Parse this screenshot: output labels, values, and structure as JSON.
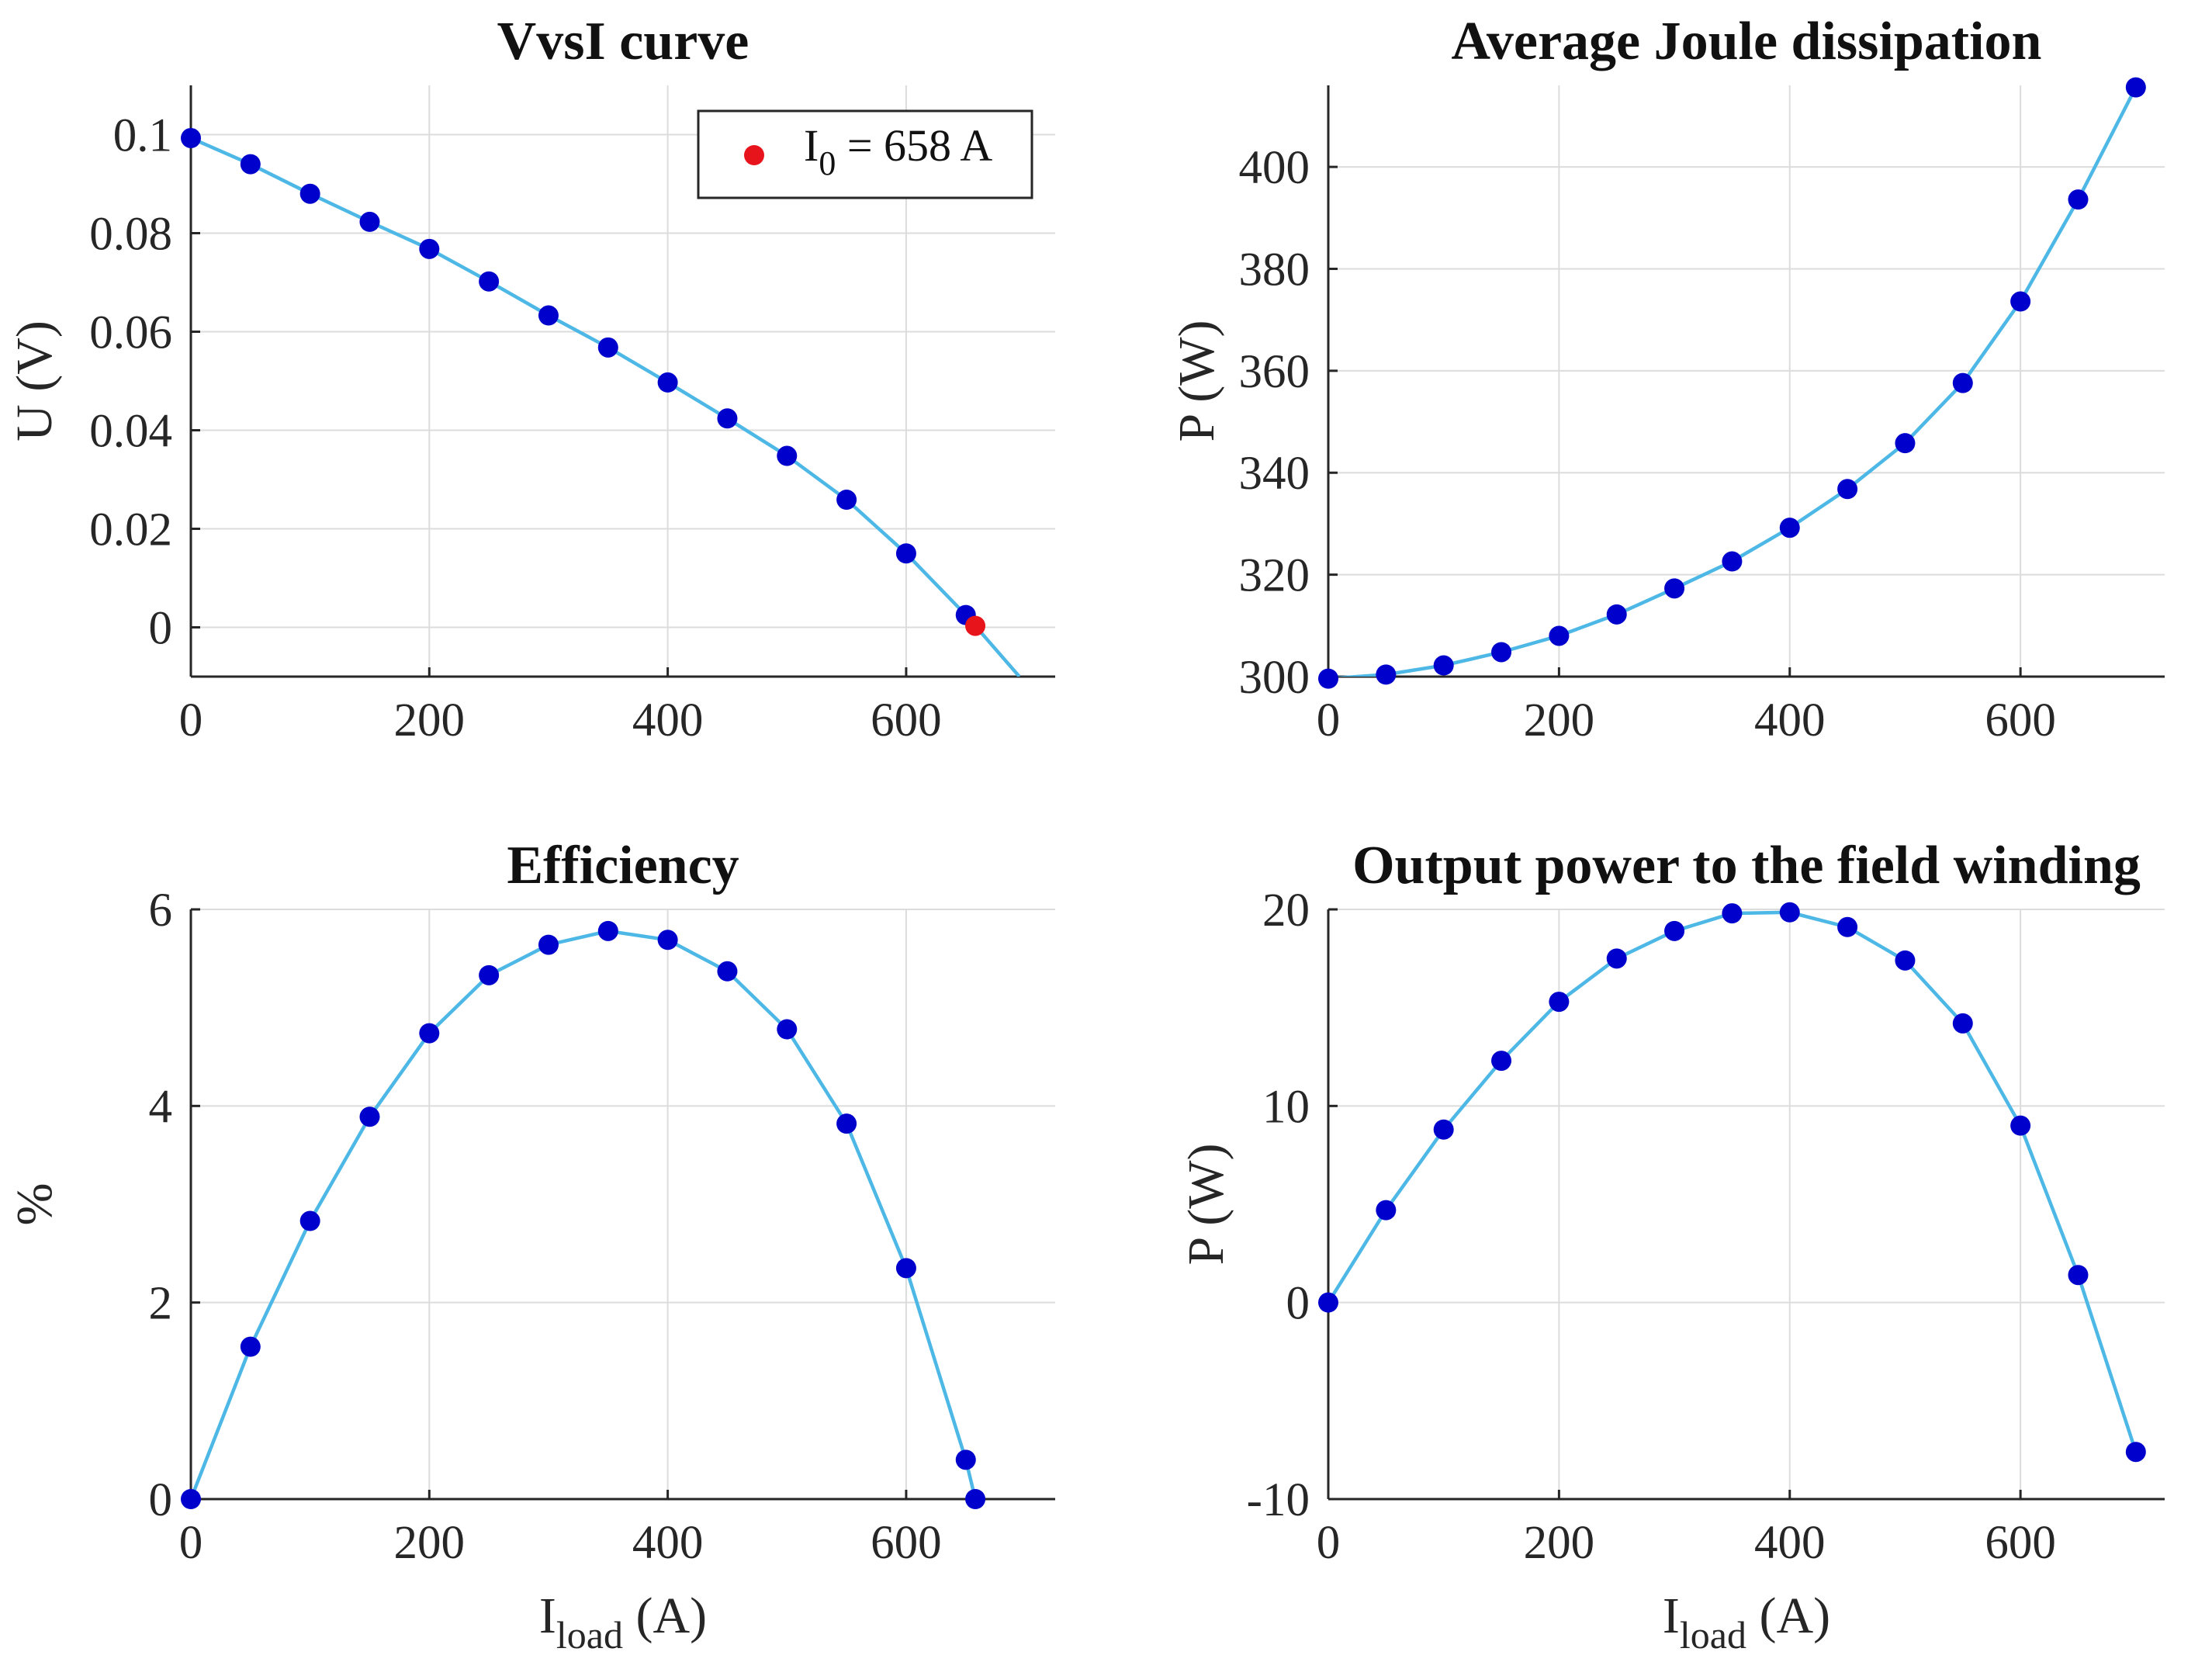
{
  "colors": {
    "curve": "#4db8e6",
    "marker": "#0000cc",
    "highlight": "#e8141c"
  },
  "chart_data": [
    {
      "id": "vvsi",
      "type": "line",
      "title": "VvsI curve",
      "ylabel": "U (V)",
      "xlabel_main": "",
      "xlabel_sub": "",
      "xlabel_tail": "",
      "xlim": [
        0,
        725
      ],
      "ylim": [
        -0.01,
        0.11
      ],
      "xticks": [
        0,
        200,
        400,
        600
      ],
      "xtick_labels": [
        "0",
        "200",
        "400",
        "600"
      ],
      "yticks": [
        0,
        0.02,
        0.04,
        0.06,
        0.08,
        0.1
      ],
      "ytick_labels": [
        "0",
        "0.02",
        "0.04",
        "0.06",
        "0.08",
        "0.1"
      ],
      "curve_x": [
        0,
        50,
        100,
        150,
        200,
        250,
        300,
        350,
        400,
        450,
        500,
        550,
        600,
        650,
        695
      ],
      "curve_y": [
        0.0993,
        0.094,
        0.088,
        0.0823,
        0.0768,
        0.0702,
        0.0633,
        0.0568,
        0.0497,
        0.0424,
        0.0348,
        0.0259,
        0.015,
        0.0025,
        -0.01
      ],
      "points_x": [
        0,
        50,
        100,
        150,
        200,
        250,
        300,
        350,
        400,
        450,
        500,
        550,
        600,
        650
      ],
      "points_y": [
        0.0993,
        0.094,
        0.088,
        0.0823,
        0.0768,
        0.0702,
        0.0633,
        0.0568,
        0.0497,
        0.0424,
        0.0348,
        0.0259,
        0.015,
        0.0025
      ],
      "highlight": {
        "x": 658,
        "y": 0.0003
      },
      "legend": {
        "main": "I",
        "sub": "0",
        "rest": " = 658 A",
        "placement": "top-right"
      }
    },
    {
      "id": "joule",
      "type": "line",
      "title": "Average Joule dissipation",
      "ylabel": "P (W)",
      "xlabel_main": "",
      "xlabel_sub": "",
      "xlabel_tail": "",
      "xlim": [
        0,
        725
      ],
      "ylim": [
        300,
        416
      ],
      "xticks": [
        0,
        200,
        400,
        600
      ],
      "xtick_labels": [
        "0",
        "200",
        "400",
        "600"
      ],
      "yticks": [
        300,
        320,
        340,
        360,
        380,
        400
      ],
      "ytick_labels": [
        "300",
        "320",
        "340",
        "360",
        "380",
        "400"
      ],
      "curve_x": [
        0,
        50,
        100,
        150,
        200,
        250,
        300,
        350,
        400,
        450,
        500,
        550,
        600,
        650,
        700
      ],
      "curve_y": [
        299.6,
        300.4,
        302.2,
        304.8,
        308.0,
        312.2,
        317.3,
        322.6,
        329.2,
        336.8,
        345.8,
        357.6,
        373.6,
        393.6,
        415.6
      ],
      "points_x": [
        0,
        50,
        100,
        150,
        200,
        250,
        300,
        350,
        400,
        450,
        500,
        550,
        600,
        650,
        700
      ],
      "points_y": [
        299.6,
        300.4,
        302.2,
        304.8,
        308.0,
        312.2,
        317.3,
        322.6,
        329.2,
        336.8,
        345.8,
        357.6,
        373.6,
        393.6,
        415.6
      ]
    },
    {
      "id": "efficiency",
      "type": "line",
      "title": "Efficiency",
      "ylabel": "%",
      "xlabel_main": "I",
      "xlabel_sub": "load",
      "xlabel_tail": " (A)",
      "xlim": [
        0,
        725
      ],
      "ylim": [
        0,
        6
      ],
      "xticks": [
        0,
        200,
        400,
        600
      ],
      "xtick_labels": [
        "0",
        "200",
        "400",
        "600"
      ],
      "yticks": [
        0,
        2,
        4,
        6
      ],
      "ytick_labels": [
        "0",
        "2",
        "4",
        "6"
      ],
      "curve_x": [
        0,
        50,
        100,
        150,
        200,
        250,
        300,
        350,
        400,
        450,
        500,
        550,
        600,
        650,
        658
      ],
      "curve_y": [
        0.0,
        1.55,
        2.83,
        3.89,
        4.74,
        5.33,
        5.64,
        5.78,
        5.69,
        5.37,
        4.78,
        3.82,
        2.35,
        0.4,
        0.0
      ],
      "points_x": [
        0,
        50,
        100,
        150,
        200,
        250,
        300,
        350,
        400,
        450,
        500,
        550,
        600,
        650,
        658
      ],
      "points_y": [
        0.0,
        1.55,
        2.83,
        3.89,
        4.74,
        5.33,
        5.64,
        5.78,
        5.69,
        5.37,
        4.78,
        3.82,
        2.35,
        0.4,
        0.0
      ]
    },
    {
      "id": "output",
      "type": "line",
      "title": "Output power to the field winding",
      "ylabel": "P (W)",
      "xlabel_main": "I",
      "xlabel_sub": "load",
      "xlabel_tail": " (A)",
      "xlim": [
        0,
        725
      ],
      "ylim": [
        -10,
        20
      ],
      "xticks": [
        0,
        200,
        400,
        600
      ],
      "xtick_labels": [
        "0",
        "200",
        "400",
        "600"
      ],
      "yticks": [
        -10,
        0,
        10,
        20
      ],
      "ytick_labels": [
        "-10",
        "0",
        "10",
        "20"
      ],
      "curve_x": [
        0,
        50,
        100,
        150,
        200,
        250,
        300,
        350,
        400,
        450,
        500,
        550,
        600,
        650,
        700
      ],
      "curve_y": [
        0.0,
        4.7,
        8.8,
        12.3,
        15.3,
        17.5,
        18.9,
        19.8,
        19.85,
        19.1,
        17.4,
        14.2,
        9.0,
        1.4,
        -7.6
      ],
      "points_x": [
        0,
        50,
        100,
        150,
        200,
        250,
        300,
        350,
        400,
        450,
        500,
        550,
        600,
        650,
        700
      ],
      "points_y": [
        0.0,
        4.7,
        8.8,
        12.3,
        15.3,
        17.5,
        18.9,
        19.8,
        19.85,
        19.1,
        17.4,
        14.2,
        9.0,
        1.4,
        -7.6
      ]
    }
  ]
}
